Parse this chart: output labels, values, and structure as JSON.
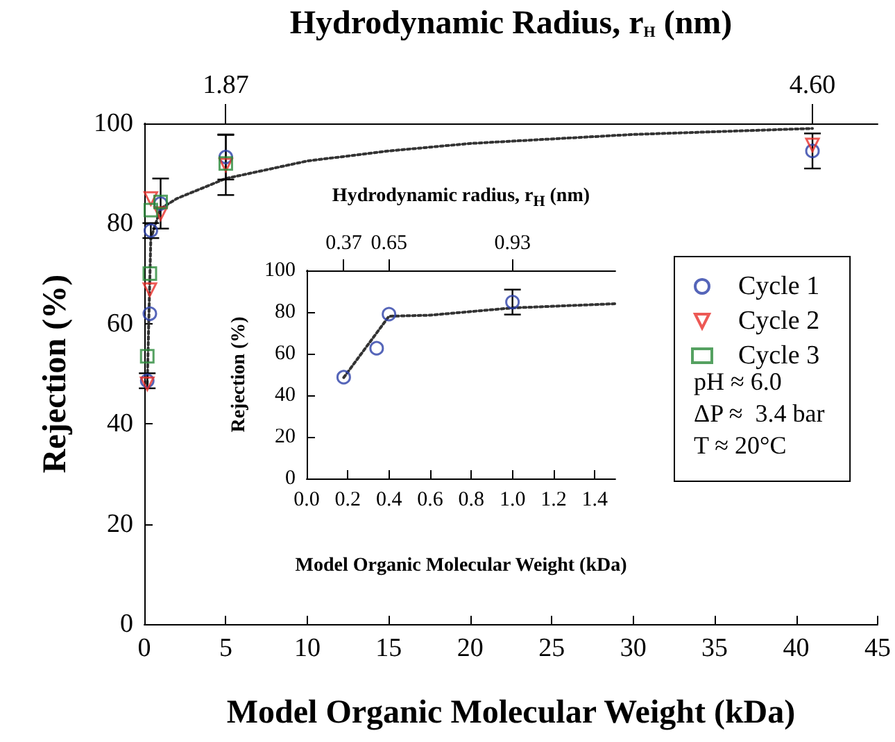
{
  "chart_data": [
    {
      "type": "scatter",
      "xlabel": "Model Organic Molecular Weight (kDa)",
      "ylabel": "Rejection (%)",
      "x2label": "Hydrodynamic Radius, r$_{H}$ (nm)",
      "x": [
        0.18,
        0.34,
        0.4,
        1.0,
        5,
        41
      ],
      "series": [
        {
          "name": "Cycle 1",
          "color": "#2b3ea8",
          "marker": "circle",
          "values": [
            48.6,
            62,
            78.6,
            84,
            93.3,
            94.5
          ],
          "errors": [
            1.5,
            null,
            1.5,
            5,
            4.5,
            3.5
          ]
        },
        {
          "name": "Cycle 2",
          "color": "#e8302a",
          "marker": "triangle",
          "values": [
            48,
            66.8,
            85,
            82,
            91.7,
            95.7
          ],
          "errors": [
            null,
            null,
            null,
            null,
            6,
            null
          ]
        },
        {
          "name": "Cycle 3",
          "color": "#2a8a3a",
          "marker": "square",
          "values": [
            53.5,
            70,
            82.7,
            84.3,
            92,
            null
          ]
        },
        {
          "type": "line",
          "color": "#333333",
          "marker": "none",
          "line_style": "dotted",
          "x": [
            0.18,
            0.4,
            1,
            2,
            5,
            10,
            15,
            20,
            30,
            41
          ],
          "values": [
            48,
            77,
            83,
            85,
            89,
            92.5,
            94.5,
            96,
            97.8,
            99
          ]
        }
      ],
      "xlim": [
        0,
        45
      ],
      "xticks": [
        0,
        5,
        10,
        15,
        20,
        25,
        30,
        35,
        40,
        45
      ],
      "ylim": [
        0,
        100
      ],
      "yticks": [
        0,
        20,
        40,
        60,
        80,
        100
      ],
      "legend": "right",
      "grid": false,
      "annotations": [
        "pH ≈ 6.0",
        "ΔP ≈  3.4 bar",
        "T ≈ 20°C",
        "1.87",
        "4.60"
      ]
    },
    {
      "type": "scatter",
      "xlabel": "Model Organic Molecular Weight (kDa)",
      "ylabel": "Rejection (%)",
      "x2label": "Hydrodynamic radius, r$_{H}$ (nm)",
      "x": [
        0.18,
        0.34,
        0.4,
        1.0
      ],
      "series": [
        {
          "color": "#2b3ea8",
          "marker": "circle",
          "values": [
            48.7,
            62.6,
            79,
            84.8
          ],
          "errors": [
            null,
            null,
            null,
            6
          ]
        },
        {
          "type": "line",
          "color": "#333333",
          "marker": "none",
          "line_style": "dotted",
          "x": [
            0.18,
            0.4,
            0.6,
            1.0,
            1.5
          ],
          "values": [
            48.5,
            78,
            78.5,
            82,
            84
          ]
        }
      ],
      "xlim": [
        0,
        1.5
      ],
      "xticks": [
        {
          "value": 0,
          "label": "0.0"
        },
        0.2,
        0.4,
        0.6,
        0.8,
        {
          "value": 1,
          "label": "1.0"
        },
        1.2,
        1.4
      ],
      "ylim": [
        0,
        100
      ],
      "yticks": [
        0,
        20,
        40,
        60,
        80,
        100
      ],
      "legend": false,
      "grid": false,
      "annotations": [
        "0.37",
        "0.65",
        "0.93"
      ]
    }
  ]
}
